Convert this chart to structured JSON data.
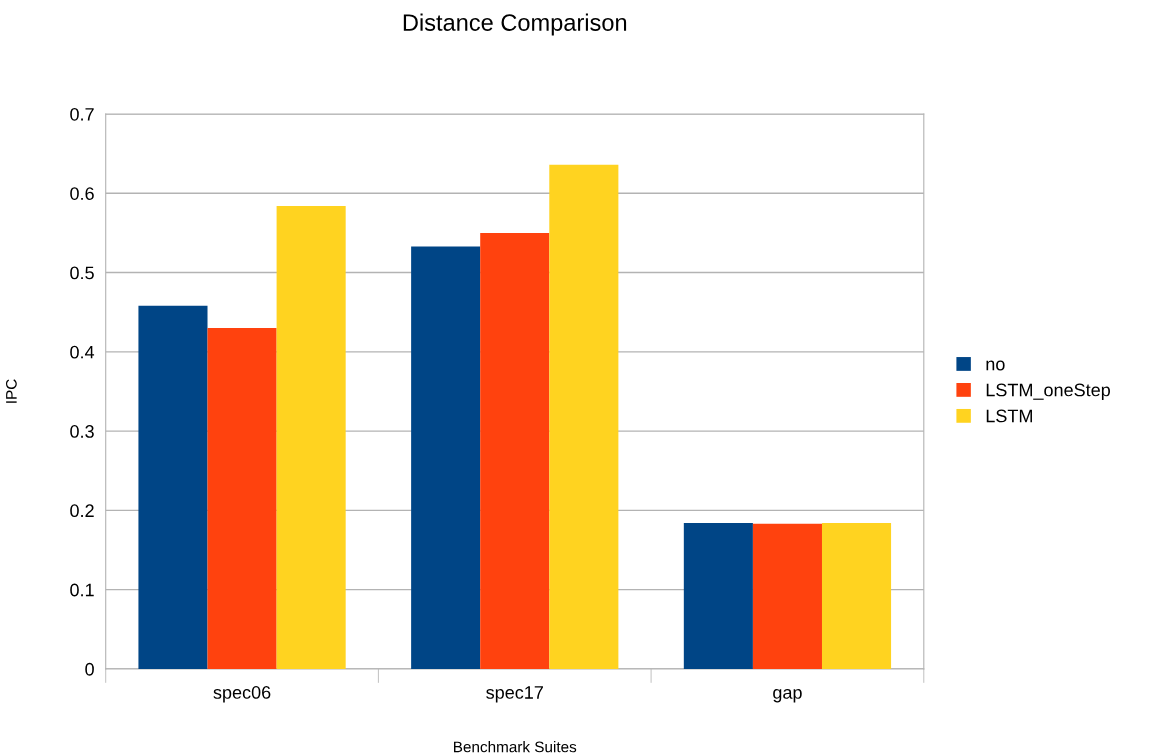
{
  "chart_data": {
    "type": "bar",
    "title": "Distance Comparison",
    "xlabel": "Benchmark Suites",
    "ylabel": "IPC",
    "categories": [
      "spec06",
      "spec17",
      "gap"
    ],
    "series": [
      {
        "name": "no",
        "color": "#004586",
        "values": [
          0.458,
          0.533,
          0.184
        ]
      },
      {
        "name": "LSTM_oneStep",
        "color": "#ff420e",
        "values": [
          0.43,
          0.55,
          0.183
        ]
      },
      {
        "name": "LSTM",
        "color": "#ffd320",
        "values": [
          0.584,
          0.636,
          0.184
        ]
      }
    ],
    "ylim": [
      0,
      0.7
    ],
    "yticks": [
      0,
      0.1,
      0.2,
      0.3,
      0.4,
      0.5,
      0.6,
      0.7
    ],
    "grid": "y",
    "legend": "right"
  }
}
